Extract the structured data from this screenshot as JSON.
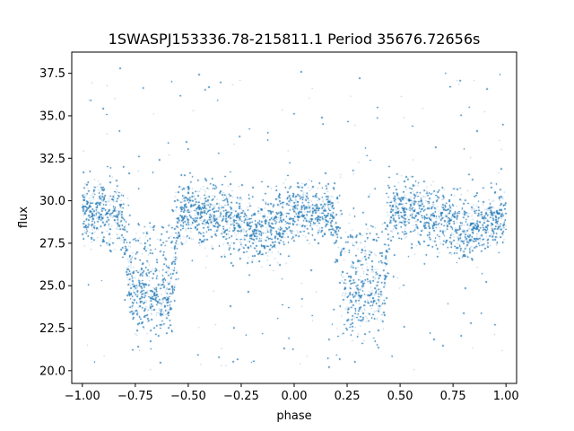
{
  "chart_data": {
    "type": "scatter",
    "title": "1SWASPJ153336.78-215811.1 Period 35676.72656s",
    "xlabel": "phase",
    "ylabel": "flux",
    "xlim": [
      -1.05,
      1.05
    ],
    "ylim": [
      19.25,
      38.75
    ],
    "x_ticks": [
      -1.0,
      -0.75,
      -0.5,
      -0.25,
      0.0,
      0.25,
      0.5,
      0.75,
      1.0
    ],
    "x_tick_labels": [
      "−1.00",
      "−0.75",
      "−0.50",
      "−0.25",
      "0.00",
      "0.25",
      "0.50",
      "0.75",
      "1.00"
    ],
    "y_ticks": [
      20.0,
      22.5,
      25.0,
      27.5,
      30.0,
      32.5,
      35.0,
      37.5
    ],
    "y_tick_labels": [
      "20.0",
      "22.5",
      "25.0",
      "27.5",
      "30.0",
      "32.5",
      "35.0",
      "37.5"
    ],
    "grid": false,
    "marker_color": "#1f77b4",
    "series": [
      {
        "phase_range": [
          -1.0,
          1.0
        ],
        "points": 26000,
        "baseline_flux": 29.3,
        "baseline_scatter": 0.85,
        "outlier_fraction": 0.07,
        "outlier_flux_range": [
          20.0,
          37.8
        ],
        "features": [
          {
            "kind": "primary-eclipse",
            "phase_start": -0.82,
            "phase_end": -0.53,
            "minimum_flux": 24.3
          },
          {
            "kind": "primary-eclipse",
            "phase_start": 0.18,
            "phase_end": 0.47,
            "minimum_flux": 24.3
          },
          {
            "kind": "secondary-eclipse",
            "phase_center": -0.18,
            "minimum_flux": 28.3
          },
          {
            "kind": "secondary-eclipse",
            "phase_center": 0.82,
            "minimum_flux": 28.3
          }
        ]
      }
    ]
  }
}
